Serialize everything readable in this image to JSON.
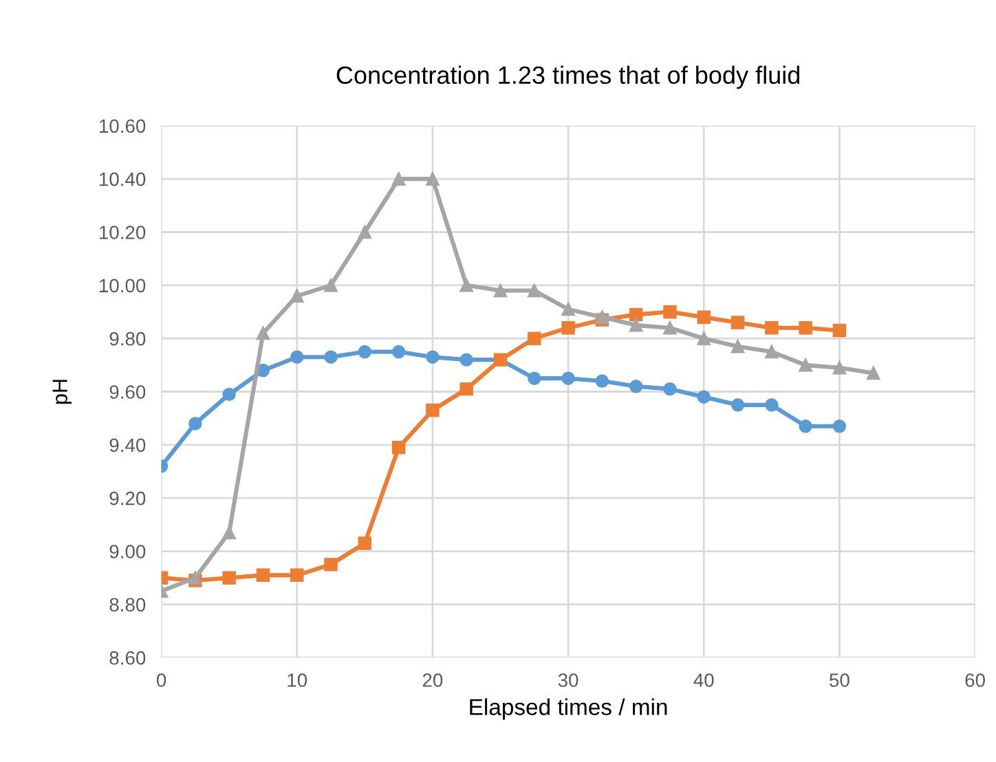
{
  "chart_data": {
    "type": "line",
    "title": "Concentration 1.23 times that of body fluid",
    "xlabel": "Elapsed times / min",
    "ylabel": "pH",
    "x": [
      0,
      2.5,
      5,
      7.5,
      10,
      12.5,
      15,
      17.5,
      20,
      22.5,
      25,
      27.5,
      30,
      32.5,
      35,
      37.5,
      40,
      42.5,
      45,
      47.5,
      50,
      52.5
    ],
    "series": [
      {
        "color": "#5b9bd5",
        "marker": "circle",
        "values": [
          9.32,
          9.48,
          9.59,
          9.68,
          9.73,
          9.73,
          9.75,
          9.75,
          9.73,
          9.72,
          9.72,
          9.65,
          9.65,
          9.64,
          9.62,
          9.61,
          9.58,
          9.55,
          9.55,
          9.47,
          9.47,
          null
        ]
      },
      {
        "color": "#ed7d31",
        "marker": "square",
        "values": [
          8.9,
          8.89,
          8.9,
          8.91,
          8.91,
          8.95,
          9.03,
          9.39,
          9.53,
          9.61,
          9.72,
          9.8,
          9.84,
          9.87,
          9.89,
          9.9,
          9.88,
          9.86,
          9.84,
          9.84,
          9.83,
          null
        ]
      },
      {
        "color": "#a5a5a5",
        "marker": "triangle",
        "values": [
          8.85,
          8.9,
          9.07,
          9.82,
          9.96,
          10.0,
          10.2,
          10.4,
          10.4,
          10.0,
          9.98,
          9.98,
          9.91,
          9.88,
          9.85,
          9.84,
          9.8,
          9.77,
          9.75,
          9.7,
          9.69,
          9.67
        ]
      }
    ],
    "xlim": [
      0,
      60
    ],
    "xticks": [
      0,
      10,
      20,
      30,
      40,
      50,
      60
    ],
    "ylim": [
      8.6,
      10.6
    ],
    "yticks": [
      {
        "value": 8.6,
        "label": "8.60"
      },
      {
        "value": 8.8,
        "label": "8.80"
      },
      {
        "value": 9.0,
        "label": "9.00"
      },
      {
        "value": 9.2,
        "label": "9.20"
      },
      {
        "value": 9.4,
        "label": "9.40"
      },
      {
        "value": 9.6,
        "label": "9.60"
      },
      {
        "value": 9.8,
        "label": "9.80"
      },
      {
        "value": 10.0,
        "label": "10.00"
      },
      {
        "value": 10.2,
        "label": "10.20"
      },
      {
        "value": 10.4,
        "label": "10.40"
      },
      {
        "value": 10.6,
        "label": "10.60"
      }
    ],
    "grid": true,
    "line_style": "solid"
  }
}
